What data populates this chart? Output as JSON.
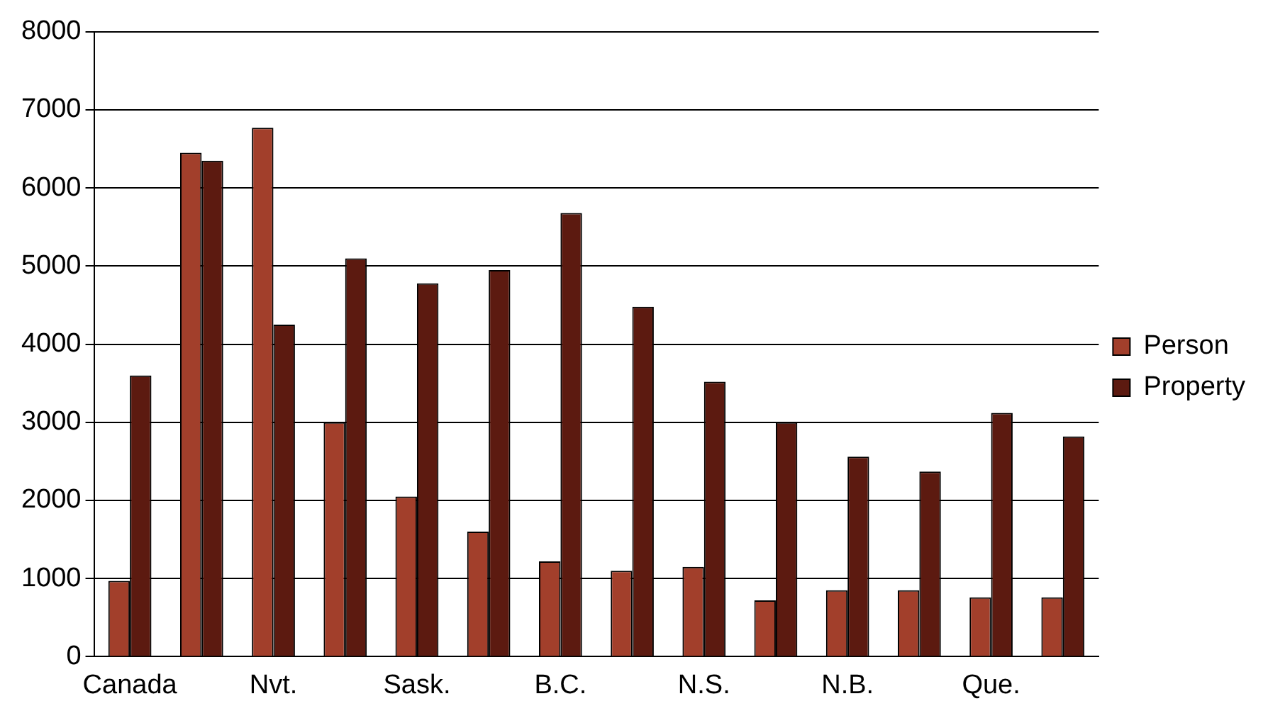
{
  "chart_data": {
    "type": "bar",
    "categories": [
      "Canada",
      null,
      "Nvt.",
      null,
      "Sask.",
      null,
      "B.C.",
      null,
      "N.S.",
      null,
      "N.B.",
      null,
      "Que.",
      null
    ],
    "series": [
      {
        "name": "Person",
        "color": "#a23f2b",
        "values": [
          970,
          6450,
          6770,
          3000,
          2050,
          1600,
          1220,
          1100,
          1150,
          720,
          850,
          850,
          760,
          760
        ]
      },
      {
        "name": "Property",
        "color": "#5c1a10",
        "values": [
          3600,
          6350,
          4250,
          5100,
          4780,
          4950,
          5680,
          4480,
          3520,
          3000,
          2560,
          2370,
          3120,
          2820
        ]
      }
    ],
    "ylim": [
      0,
      8000
    ],
    "yticks": [
      0,
      1000,
      2000,
      3000,
      4000,
      5000,
      6000,
      7000,
      8000
    ],
    "grid": "y",
    "legend": "right"
  }
}
